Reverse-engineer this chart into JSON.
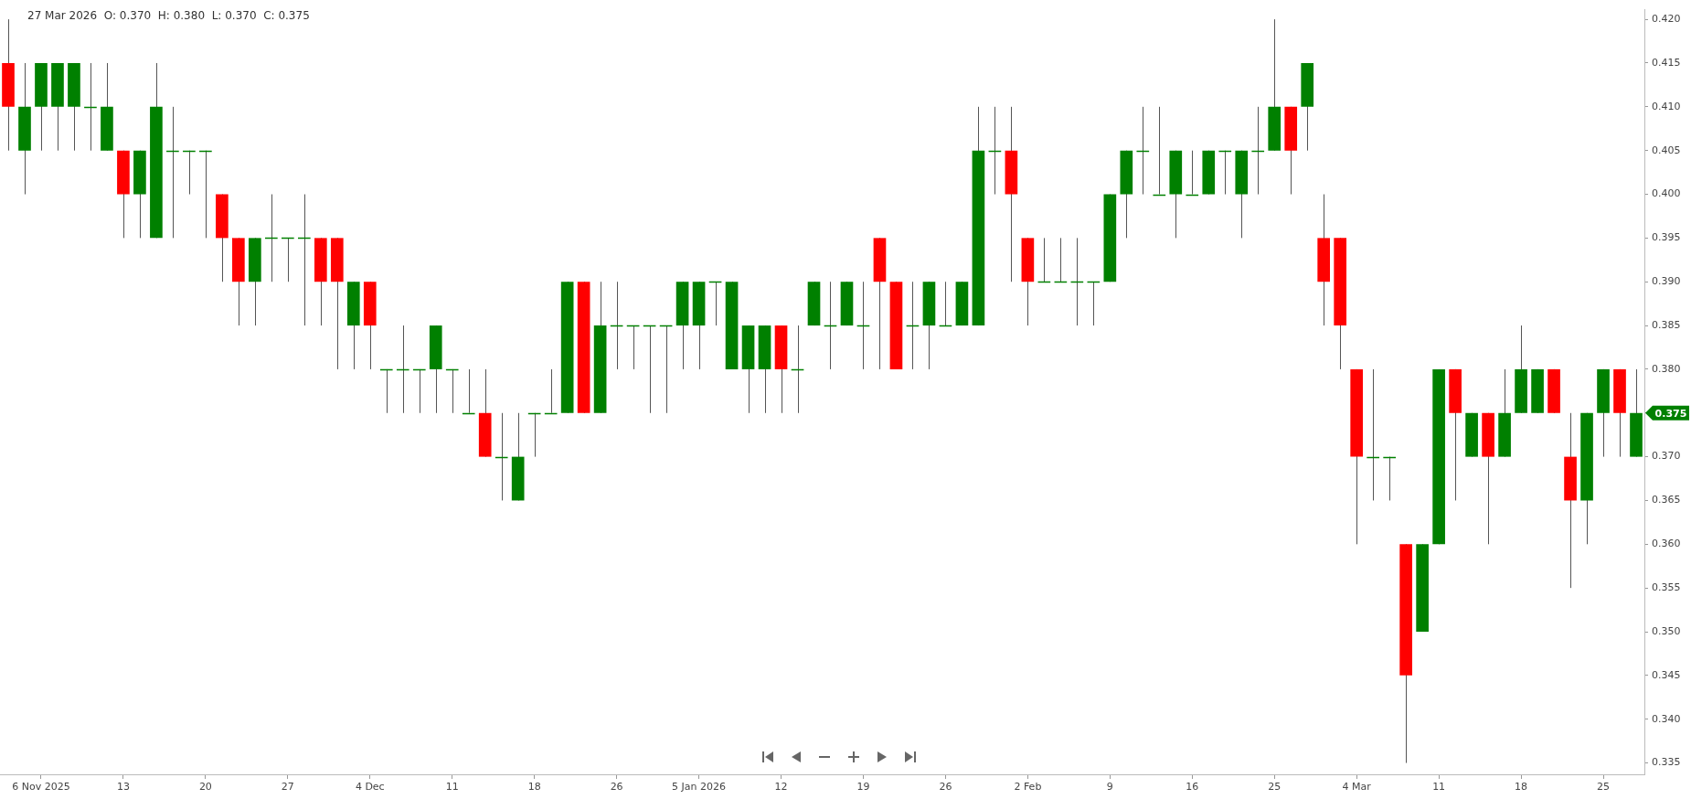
{
  "chart_data": {
    "type": "candlestick",
    "annotations": [
      "27 Mar 2026  O: 0.370  H: 0.380  L: 0.370  C: 0.375",
      "0.375"
    ],
    "categories": [
      null,
      null,
      "6 Nov 2025",
      null,
      null,
      null,
      null,
      "13",
      null,
      null,
      null,
      null,
      "20",
      null,
      null,
      null,
      null,
      "27",
      null,
      null,
      null,
      null,
      "4 Dec",
      null,
      null,
      null,
      null,
      "11",
      null,
      null,
      null,
      null,
      "18",
      null,
      null,
      null,
      null,
      "26",
      null,
      null,
      null,
      null,
      "5 Jan 2026",
      null,
      null,
      null,
      null,
      "12",
      null,
      null,
      null,
      null,
      "19",
      null,
      null,
      null,
      null,
      "26",
      null,
      null,
      null,
      null,
      "2 Feb",
      null,
      null,
      null,
      null,
      "9",
      null,
      null,
      null,
      null,
      "16",
      null,
      null,
      null,
      null,
      "25",
      null,
      null,
      null,
      null,
      "4 Mar",
      null,
      null,
      null,
      null,
      "11",
      null,
      null,
      null,
      null,
      "18",
      null,
      null,
      null,
      null,
      "25",
      null,
      null
    ],
    "ohlc": [
      [
        0.415,
        0.42,
        0.405,
        0.41
      ],
      [
        0.405,
        0.415,
        0.4,
        0.41
      ],
      [
        0.41,
        0.415,
        0.405,
        0.415
      ],
      [
        0.41,
        0.415,
        0.405,
        0.415
      ],
      [
        0.41,
        0.415,
        0.405,
        0.415
      ],
      [
        0.41,
        0.415,
        0.405,
        0.41
      ],
      [
        0.405,
        0.415,
        0.405,
        0.41
      ],
      [
        0.405,
        0.405,
        0.395,
        0.4
      ],
      [
        0.4,
        0.405,
        0.395,
        0.405
      ],
      [
        0.395,
        0.415,
        0.395,
        0.41
      ],
      [
        0.405,
        0.41,
        0.395,
        0.405
      ],
      [
        0.405,
        0.405,
        0.4,
        0.405
      ],
      [
        0.405,
        0.405,
        0.395,
        0.405
      ],
      [
        0.4,
        0.4,
        0.39,
        0.395
      ],
      [
        0.395,
        0.395,
        0.385,
        0.39
      ],
      [
        0.39,
        0.395,
        0.385,
        0.395
      ],
      [
        0.395,
        0.4,
        0.39,
        0.395
      ],
      [
        0.395,
        0.395,
        0.39,
        0.395
      ],
      [
        0.395,
        0.4,
        0.385,
        0.395
      ],
      [
        0.395,
        0.395,
        0.385,
        0.39
      ],
      [
        0.395,
        0.395,
        0.38,
        0.39
      ],
      [
        0.385,
        0.39,
        0.38,
        0.39
      ],
      [
        0.39,
        0.39,
        0.38,
        0.385
      ],
      [
        0.38,
        0.38,
        0.375,
        0.38
      ],
      [
        0.38,
        0.385,
        0.375,
        0.38
      ],
      [
        0.38,
        0.38,
        0.375,
        0.38
      ],
      [
        0.38,
        0.385,
        0.375,
        0.385
      ],
      [
        0.38,
        0.38,
        0.375,
        0.38
      ],
      [
        0.375,
        0.38,
        0.375,
        0.375
      ],
      [
        0.375,
        0.38,
        0.37,
        0.37
      ],
      [
        0.37,
        0.375,
        0.365,
        0.37
      ],
      [
        0.365,
        0.375,
        0.365,
        0.37
      ],
      [
        0.375,
        0.375,
        0.37,
        0.375
      ],
      [
        0.375,
        0.38,
        0.375,
        0.375
      ],
      [
        0.375,
        0.39,
        0.375,
        0.39
      ],
      [
        0.39,
        0.39,
        0.375,
        0.375
      ],
      [
        0.375,
        0.39,
        0.375,
        0.385
      ],
      [
        0.385,
        0.39,
        0.38,
        0.385
      ],
      [
        0.385,
        0.385,
        0.38,
        0.385
      ],
      [
        0.385,
        0.385,
        0.375,
        0.385
      ],
      [
        0.385,
        0.385,
        0.375,
        0.385
      ],
      [
        0.385,
        0.39,
        0.38,
        0.39
      ],
      [
        0.385,
        0.39,
        0.38,
        0.39
      ],
      [
        0.39,
        0.39,
        0.385,
        0.39
      ],
      [
        0.38,
        0.39,
        0.38,
        0.39
      ],
      [
        0.38,
        0.385,
        0.375,
        0.385
      ],
      [
        0.38,
        0.385,
        0.375,
        0.385
      ],
      [
        0.385,
        0.385,
        0.375,
        0.38
      ],
      [
        0.38,
        0.385,
        0.375,
        0.38
      ],
      [
        0.385,
        0.39,
        0.385,
        0.39
      ],
      [
        0.385,
        0.39,
        0.38,
        0.385
      ],
      [
        0.385,
        0.39,
        0.385,
        0.39
      ],
      [
        0.385,
        0.39,
        0.38,
        0.385
      ],
      [
        0.395,
        0.395,
        0.38,
        0.39
      ],
      [
        0.39,
        0.39,
        0.38,
        0.38
      ],
      [
        0.385,
        0.39,
        0.38,
        0.385
      ],
      [
        0.385,
        0.39,
        0.38,
        0.39
      ],
      [
        0.385,
        0.39,
        0.385,
        0.385
      ],
      [
        0.385,
        0.39,
        0.385,
        0.39
      ],
      [
        0.385,
        0.41,
        0.385,
        0.405
      ],
      [
        0.405,
        0.41,
        0.4,
        0.405
      ],
      [
        0.405,
        0.41,
        0.39,
        0.4
      ],
      [
        0.395,
        0.395,
        0.385,
        0.39
      ],
      [
        0.39,
        0.395,
        0.39,
        0.39
      ],
      [
        0.39,
        0.395,
        0.39,
        0.39
      ],
      [
        0.39,
        0.395,
        0.385,
        0.39
      ],
      [
        0.39,
        0.39,
        0.385,
        0.39
      ],
      [
        0.39,
        0.4,
        0.39,
        0.4
      ],
      [
        0.4,
        0.405,
        0.395,
        0.405
      ],
      [
        0.405,
        0.41,
        0.4,
        0.405
      ],
      [
        0.4,
        0.41,
        0.4,
        0.4
      ],
      [
        0.4,
        0.405,
        0.395,
        0.405
      ],
      [
        0.4,
        0.405,
        0.4,
        0.4
      ],
      [
        0.4,
        0.405,
        0.4,
        0.405
      ],
      [
        0.405,
        0.405,
        0.4,
        0.405
      ],
      [
        0.4,
        0.405,
        0.395,
        0.405
      ],
      [
        0.405,
        0.41,
        0.4,
        0.405
      ],
      [
        0.405,
        0.42,
        0.405,
        0.41
      ],
      [
        0.41,
        0.41,
        0.4,
        0.405
      ],
      [
        0.41,
        0.415,
        0.405,
        0.415
      ],
      [
        0.395,
        0.4,
        0.385,
        0.39
      ],
      [
        0.395,
        0.395,
        0.38,
        0.385
      ],
      [
        0.38,
        0.38,
        0.36,
        0.37
      ],
      [
        0.37,
        0.38,
        0.365,
        0.37
      ],
      [
        0.37,
        0.37,
        0.365,
        0.37
      ],
      [
        0.36,
        0.36,
        0.335,
        0.345
      ],
      [
        0.35,
        0.36,
        0.35,
        0.36
      ],
      [
        0.36,
        0.38,
        0.36,
        0.38
      ],
      [
        0.38,
        0.38,
        0.365,
        0.375
      ],
      [
        0.37,
        0.375,
        0.37,
        0.375
      ],
      [
        0.375,
        0.375,
        0.36,
        0.37
      ],
      [
        0.37,
        0.38,
        0.37,
        0.375
      ],
      [
        0.375,
        0.385,
        0.375,
        0.38
      ],
      [
        0.375,
        0.38,
        0.375,
        0.38
      ],
      [
        0.38,
        0.38,
        0.375,
        0.375
      ],
      [
        0.37,
        0.375,
        0.355,
        0.365
      ],
      [
        0.365,
        0.375,
        0.36,
        0.375
      ],
      [
        0.375,
        0.38,
        0.37,
        0.38
      ],
      [
        0.38,
        0.38,
        0.37,
        0.375
      ],
      [
        0.37,
        0.38,
        0.37,
        0.375
      ]
    ],
    "colors": [
      "#ff0000",
      "#008000",
      "#008000",
      "#008000",
      "#008000",
      "#008000",
      "#008000",
      "#ff0000",
      "#008000",
      "#008000",
      "#008000",
      "#008000",
      "#008000",
      "#ff0000",
      "#ff0000",
      "#008000",
      "#008000",
      "#008000",
      "#008000",
      "#ff0000",
      "#ff0000",
      "#008000",
      "#ff0000",
      "#008000",
      "#008000",
      "#008000",
      "#008000",
      "#008000",
      "#008000",
      "#ff0000",
      "#008000",
      "#008000",
      "#008000",
      "#008000",
      "#008000",
      "#ff0000",
      "#008000",
      "#008000",
      "#008000",
      "#008000",
      "#008000",
      "#008000",
      "#008000",
      "#008000",
      "#008000",
      "#008000",
      "#008000",
      "#ff0000",
      "#008000",
      "#008000",
      "#008000",
      "#008000",
      "#008000",
      "#ff0000",
      "#ff0000",
      "#008000",
      "#008000",
      "#008000",
      "#008000",
      "#008000",
      "#008000",
      "#ff0000",
      "#ff0000",
      "#008000",
      "#008000",
      "#008000",
      "#008000",
      "#008000",
      "#008000",
      "#008000",
      "#008000",
      "#008000",
      "#008000",
      "#008000",
      "#008000",
      "#008000",
      "#008000",
      "#008000",
      "#ff0000",
      "#008000",
      "#ff0000",
      "#ff0000",
      "#ff0000",
      "#008000",
      "#008000",
      "#ff0000",
      "#008000",
      "#008000",
      "#ff0000",
      "#008000",
      "#ff0000",
      "#008000",
      "#008000",
      "#008000",
      "#ff0000",
      "#ff0000",
      "#008000",
      "#008000",
      "#ff0000",
      "#008000"
    ],
    "ylim": [
      0.3337,
      0.4211
    ],
    "yticks": [
      {
        "value": 0.335,
        "label": "0.335"
      },
      {
        "value": 0.34,
        "label": "0.340"
      },
      {
        "value": 0.345,
        "label": "0.345"
      },
      {
        "value": 0.35,
        "label": "0.350"
      },
      {
        "value": 0.355,
        "label": "0.355"
      },
      {
        "value": 0.36,
        "label": "0.360"
      },
      {
        "value": 0.365,
        "label": "0.365"
      },
      {
        "value": 0.37,
        "label": "0.370"
      },
      {
        "value": 0.375,
        "label": null
      },
      {
        "value": 0.38,
        "label": "0.380"
      },
      {
        "value": 0.385,
        "label": "0.385"
      },
      {
        "value": 0.39,
        "label": "0.390"
      },
      {
        "value": 0.395,
        "label": "0.395"
      },
      {
        "value": 0.4,
        "label": "0.400"
      },
      {
        "value": 0.405,
        "label": "0.405"
      },
      {
        "value": 0.41,
        "label": "0.410"
      },
      {
        "value": 0.415,
        "label": "0.415"
      },
      {
        "value": 0.42,
        "label": "0.420"
      }
    ],
    "grid": false,
    "legend": false
  }
}
